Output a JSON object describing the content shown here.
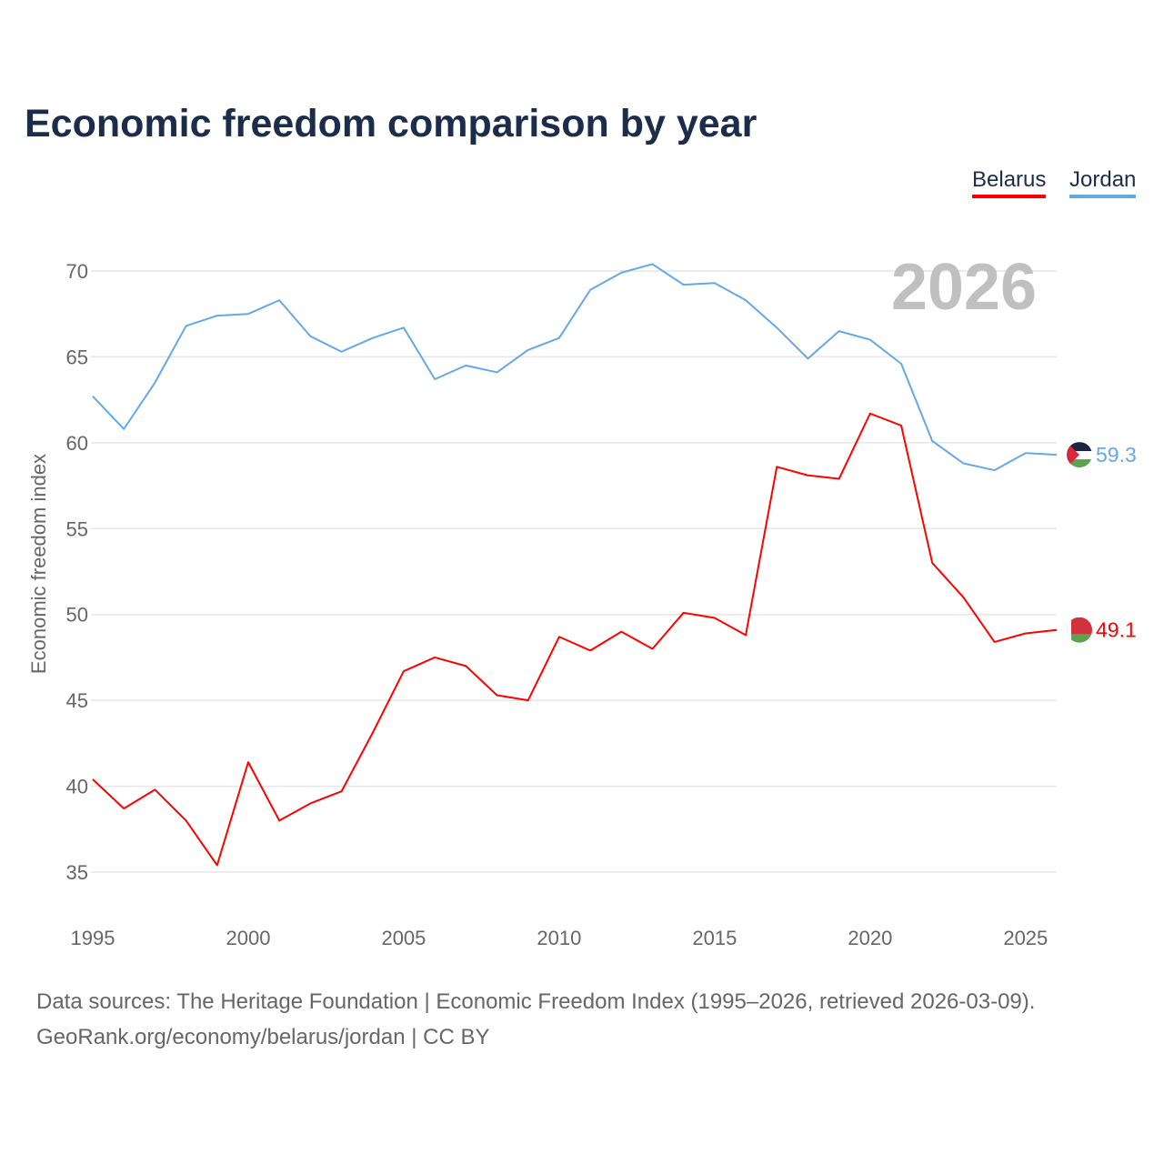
{
  "title": "Economic freedom comparison by year",
  "footer": {
    "line1": "Data sources: The Heritage Foundation | Economic Freedom Index (1995–2026, retrieved 2026-03-09).",
    "line2": "GeoRank.org/economy/belarus/jordan | CC BY"
  },
  "chart_data": {
    "type": "line",
    "title": "Economic freedom comparison by year",
    "xlabel": "",
    "ylabel": "Economic freedom index",
    "year_watermark": "2026",
    "x": [
      1995,
      1996,
      1997,
      1998,
      1999,
      2000,
      2001,
      2002,
      2003,
      2004,
      2005,
      2006,
      2007,
      2008,
      2009,
      2010,
      2011,
      2012,
      2013,
      2014,
      2015,
      2016,
      2017,
      2018,
      2019,
      2020,
      2021,
      2022,
      2023,
      2024,
      2025,
      2026
    ],
    "xlim": [
      1995,
      2026
    ],
    "ylim": [
      33,
      71.5
    ],
    "xticks": [
      "1995",
      "2000",
      "2005",
      "2010",
      "2015",
      "2020",
      "2025"
    ],
    "yticks": [
      "35",
      "40",
      "45",
      "50",
      "55",
      "60",
      "65",
      "70"
    ],
    "legend_position": "top-right",
    "series": [
      {
        "name": "Belarus",
        "color": "#ff0000",
        "end_label": "49.1",
        "values": [
          40.4,
          38.7,
          39.8,
          38.0,
          35.4,
          41.4,
          38.0,
          39.0,
          39.7,
          43.1,
          46.7,
          47.5,
          47.0,
          45.3,
          45.0,
          48.7,
          47.9,
          49.0,
          48.0,
          50.1,
          49.8,
          48.8,
          58.6,
          58.1,
          57.9,
          61.7,
          61.0,
          53.0,
          51.0,
          48.4,
          48.9,
          49.1
        ]
      },
      {
        "name": "Jordan",
        "color": "#64a8e8",
        "end_label": "59.3",
        "values": [
          62.7,
          60.8,
          63.5,
          66.8,
          67.4,
          67.5,
          68.3,
          66.2,
          65.3,
          66.1,
          66.7,
          63.7,
          64.5,
          64.1,
          65.4,
          66.1,
          68.9,
          69.9,
          70.4,
          69.2,
          69.3,
          68.3,
          66.7,
          64.9,
          66.5,
          66.0,
          64.6,
          60.1,
          58.8,
          58.4,
          59.4,
          59.3
        ]
      }
    ]
  }
}
